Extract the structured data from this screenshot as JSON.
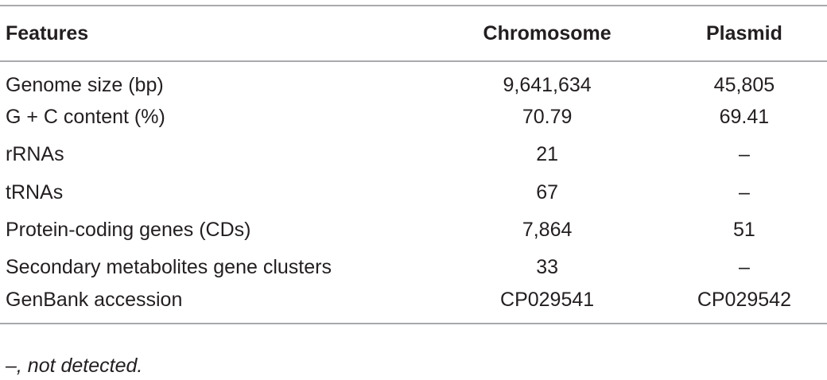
{
  "table": {
    "header": [
      "Features",
      "Chromosome",
      "Plasmid"
    ],
    "rows": [
      [
        "Genome size (bp)",
        "9,641,634",
        "45,805"
      ],
      [
        "G + C content (%)",
        "70.79",
        "69.41"
      ],
      [
        "rRNAs",
        "21",
        "–"
      ],
      [
        "tRNAs",
        "67",
        "–"
      ],
      [
        "Protein-coding genes (CDs)",
        "7,864",
        "51"
      ],
      [
        "Secondary metabolites gene clusters",
        "33",
        "–"
      ],
      [
        "GenBank accession",
        "CP029541",
        "CP029542"
      ]
    ],
    "footnote": "–, not detected."
  }
}
